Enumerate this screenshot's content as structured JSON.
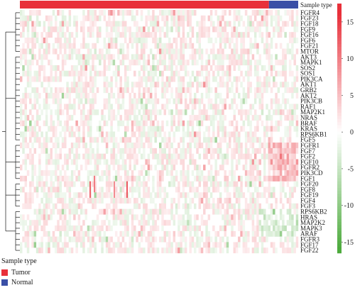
{
  "chart_data": {
    "type": "heatmap",
    "annotation": {
      "label": "Sample type",
      "groups": [
        {
          "name": "Tumor",
          "color": "#e8303a",
          "fraction": 0.895
        },
        {
          "name": "Normal",
          "color": "#3a4fa6",
          "fraction": 0.105
        }
      ]
    },
    "rows": [
      "FGFR4",
      "FGF23",
      "FGF18",
      "FGF9",
      "FGF16",
      "FGF6",
      "FGF21",
      "MTOR",
      "AKT3",
      "MAPK1",
      "SOS2",
      "SOS1",
      "PIK3CA",
      "AKT1",
      "GRB2",
      "AKT2",
      "PIK3CB",
      "RAF1",
      "MAP2K1",
      "NRAS",
      "BRAF",
      "KRAS",
      "RPS6KB1",
      "FGF5",
      "FGFR1",
      "FGF7",
      "FGF2",
      "FGF10",
      "FGFR2",
      "PIK3CD",
      "FGF1",
      "FGF20",
      "FGF8",
      "FGF19",
      "FGF4",
      "FGF3",
      "RPS6KB2",
      "HRAS",
      "MAP2K2",
      "MAPK3",
      "ARAF",
      "FGFR3",
      "FGF17",
      "FGF22"
    ],
    "colorbar": {
      "ticks": [
        15,
        10,
        5,
        0,
        -5,
        -10,
        -15
      ],
      "range": [
        -16.5,
        17.5
      ],
      "colors": {
        "high": "#e8303a",
        "mid": "#ffffff",
        "low": "#4caa3c"
      }
    },
    "legend_title": "Sample type"
  }
}
